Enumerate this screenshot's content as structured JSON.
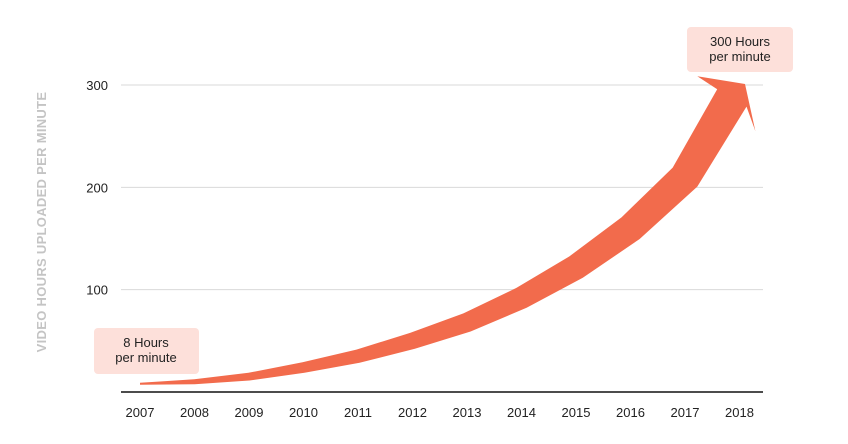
{
  "chart_data": {
    "type": "area",
    "title": "",
    "ylabel": "VIDEO HOURS UPLOADED PER MINUTE",
    "xlabel": "",
    "categories": [
      "2007",
      "2008",
      "2009",
      "2010",
      "2011",
      "2012",
      "2013",
      "2014",
      "2015",
      "2016",
      "2017",
      "2018"
    ],
    "yticks": [
      100,
      200,
      300
    ],
    "ylim": [
      0,
      300
    ],
    "grid": true,
    "series": [
      {
        "values": [
          8,
          10,
          15,
          24,
          35,
          50,
          68,
          92,
          122,
          160,
          210,
          300
        ]
      }
    ],
    "annotations": {
      "start": {
        "line1": "8 Hours",
        "line2": "per minute"
      },
      "end": {
        "line1": "300 Hours",
        "line2": "per minute"
      }
    },
    "colors": {
      "arrow": "#f26b4c",
      "callout_bg": "#fde0da",
      "grid": "#d9d9d9",
      "axis": "#111111",
      "ylabel": "#c4c4c4"
    }
  }
}
